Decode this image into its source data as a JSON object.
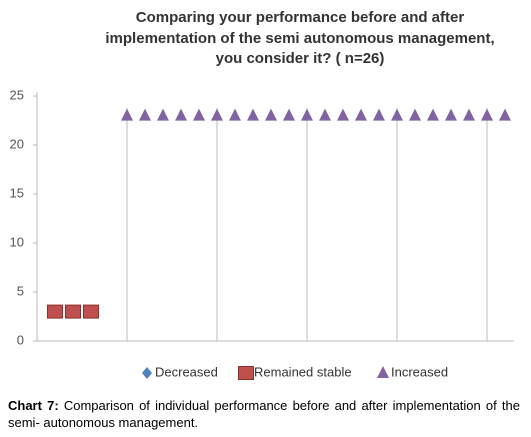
{
  "chart_data": {
    "type": "scatter",
    "title": [
      "Comparing your performance before and after",
      "implementation of the semi autonomous management,",
      "you consider it? ( n=26)"
    ],
    "series": [
      {
        "name": "Decreased",
        "color": "#4f81bd",
        "marker": "diamond",
        "x": [],
        "values": []
      },
      {
        "name": "Remained stable",
        "color": "#c0504d",
        "marker": "square",
        "x": [
          1,
          2,
          3
        ],
        "values": [
          3,
          3,
          3
        ]
      },
      {
        "name": "Increased",
        "color": "#8064a2",
        "marker": "triangle",
        "x": [
          5,
          6,
          7,
          8,
          9,
          10,
          11,
          12,
          13,
          14,
          15,
          16,
          17,
          18,
          19,
          20,
          21,
          22,
          23,
          24,
          25,
          26
        ],
        "values": [
          23,
          23,
          23,
          23,
          23,
          23,
          23,
          23,
          23,
          23,
          23,
          23,
          23,
          23,
          23,
          23,
          23,
          23,
          23,
          23,
          23,
          23
        ]
      }
    ],
    "xlim": [
      0,
      26.5
    ],
    "xgrid": [
      5,
      10,
      15,
      20,
      25
    ],
    "ylim": [
      0,
      25
    ],
    "yticks": [
      0,
      5,
      10,
      15,
      20,
      25
    ],
    "legend": "bottom"
  },
  "caption": {
    "label": "Chart 7:",
    "text": " Comparison of individual performance before and after implementation of the semi- autonomous  management."
  }
}
